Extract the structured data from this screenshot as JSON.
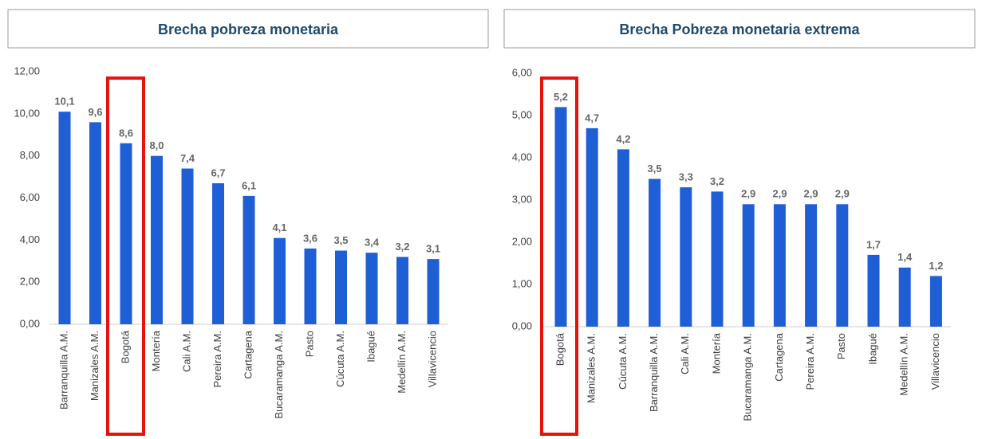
{
  "chart_data": [
    {
      "type": "bar",
      "title": "Brecha pobreza monetaria",
      "categories": [
        "Barranquilla A.M.",
        "Manizales A.M.",
        "Bogotá",
        "Montería",
        "Cali A.M.",
        "Pereira A.M.",
        "Cartagena",
        "Bucaramanga A.M.",
        "Pasto",
        "Cúcuta A.M.",
        "Ibagué",
        "Medellín A.M.",
        "Villavicencio"
      ],
      "values": [
        10.1,
        9.6,
        8.6,
        8.0,
        7.4,
        6.7,
        6.1,
        4.1,
        3.6,
        3.5,
        3.4,
        3.2,
        3.1
      ],
      "value_labels": [
        "10,1",
        "9,6",
        "8,6",
        "8,0",
        "7,4",
        "6,7",
        "6,1",
        "4,1",
        "3,6",
        "3,5",
        "3,4",
        "3,2",
        "3,1"
      ],
      "color": "#1f5fd6",
      "ylim": [
        0,
        12
      ],
      "yticks": [
        {
          "value": 0,
          "label": "0,00"
        },
        {
          "value": 2,
          "label": "2,00"
        },
        {
          "value": 4,
          "label": "4,00"
        },
        {
          "value": 6,
          "label": "6,00"
        },
        {
          "value": 8,
          "label": "8,00"
        },
        {
          "value": 10,
          "label": "10,00"
        },
        {
          "value": 12,
          "label": "12,00"
        }
      ],
      "grid": false
    },
    {
      "type": "bar",
      "title": "Brecha Pobreza monetaria extrema",
      "categories": [
        "Bogotá",
        "Manizales A.M.",
        "Cúcuta A.M.",
        "Barranquilla A.M.",
        "Cali A.M.",
        "Montería",
        "Bucaramanga A.M.",
        "Cartagena",
        "Pereira A.M.",
        "Pasto",
        "Ibagué",
        "Medellín A.M.",
        "Villavicencio"
      ],
      "values": [
        5.2,
        4.7,
        4.2,
        3.5,
        3.3,
        3.2,
        2.9,
        2.9,
        2.9,
        2.9,
        1.7,
        1.4,
        1.2
      ],
      "value_labels": [
        "5,2",
        "4,7",
        "4,2",
        "3,5",
        "3,3",
        "3,2",
        "2,9",
        "2,9",
        "2,9",
        "2,9",
        "1,7",
        "1,4",
        "1,2"
      ],
      "color": "#1f5fd6",
      "ylim": [
        0,
        6
      ],
      "yticks": [
        {
          "value": 0,
          "label": "0,00"
        },
        {
          "value": 1,
          "label": "1,00"
        },
        {
          "value": 2,
          "label": "2,00"
        },
        {
          "value": 3,
          "label": "3,00"
        },
        {
          "value": 4,
          "label": "4,00"
        },
        {
          "value": 5,
          "label": "5,00"
        },
        {
          "value": 6,
          "label": "6,00"
        }
      ],
      "grid": false
    }
  ]
}
